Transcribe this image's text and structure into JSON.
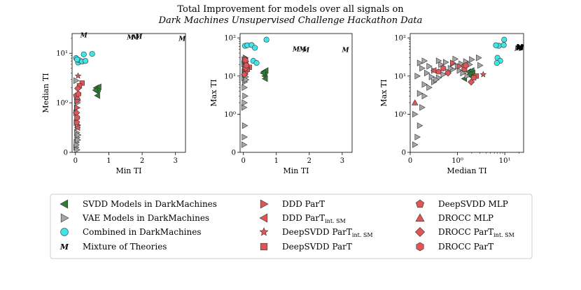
{
  "chart_data": {
    "type": "scatter",
    "title_line1": "Total Improvement for models over all signals on",
    "title_line2": "Dark Machines Unsupervised Challenge Hackathon Data",
    "panels": [
      {
        "id": "p1",
        "xlabel": "Min TI",
        "ylabel": "Median TI",
        "xscale": "linear",
        "yscale": "symlog",
        "xlim": [
          -0.1,
          3.3
        ],
        "ylim": [
          0,
          25
        ],
        "xticks": [
          {
            "v": 0,
            "label": "0"
          },
          {
            "v": 1,
            "label": "1"
          },
          {
            "v": 2,
            "label": "2"
          },
          {
            "v": 3,
            "label": "3"
          }
        ],
        "yticks": [
          {
            "v": 0,
            "label": "0"
          },
          {
            "v": 1,
            "label": "10⁰"
          },
          {
            "v": 10,
            "label": "10¹"
          }
        ],
        "series": [
          {
            "key": "svdd",
            "points": [
              [
                0.62,
                2.0
              ],
              [
                0.65,
                1.7
              ],
              [
                0.68,
                1.9
              ],
              [
                0.7,
                2.1
              ],
              [
                0.66,
                1.4
              ],
              [
                0.6,
                1.8
              ]
            ]
          },
          {
            "key": "vae",
            "points": [
              [
                0.02,
                0.1
              ],
              [
                0.03,
                0.2
              ],
              [
                0.05,
                0.3
              ],
              [
                0.04,
                0.4
              ],
              [
                0.06,
                0.5
              ],
              [
                0.03,
                0.6
              ],
              [
                0.05,
                0.7
              ],
              [
                0.02,
                0.8
              ],
              [
                0.04,
                0.9
              ],
              [
                0.06,
                1.0
              ],
              [
                0.05,
                1.2
              ],
              [
                0.03,
                0.15
              ],
              [
                0.07,
                0.25
              ],
              [
                0.08,
                0.35
              ],
              [
                0.02,
                2.8
              ],
              [
                0.05,
                0.05
              ],
              [
                0.07,
                0.55
              ],
              [
                0.04,
                1.1
              ]
            ]
          },
          {
            "key": "combined",
            "points": [
              [
                0.02,
                8.0
              ],
              [
                0.08,
                6.5
              ],
              [
                0.12,
                7.2
              ],
              [
                0.2,
                6.8
              ],
              [
                0.25,
                9.5
              ],
              [
                0.3,
                7.0
              ],
              [
                0.5,
                9.7
              ],
              [
                0.05,
                7.5
              ]
            ]
          },
          {
            "key": "ddd",
            "points": [
              [
                0.05,
                0.9
              ],
              [
                0.07,
                1.1
              ]
            ]
          },
          {
            "key": "dddint",
            "points": [
              [
                0.06,
                0.5
              ]
            ]
          },
          {
            "key": "star",
            "points": [
              [
                0.08,
                3.5
              ]
            ]
          },
          {
            "key": "square",
            "points": [
              [
                0.2,
                2.5
              ],
              [
                0.12,
                2.2
              ]
            ]
          },
          {
            "key": "pent",
            "points": [
              [
                0.02,
                1.4
              ],
              [
                0.04,
                0.6
              ]
            ]
          },
          {
            "key": "tri",
            "points": [
              [
                0.06,
                1.3
              ]
            ]
          },
          {
            "key": "diam",
            "points": [
              [
                0.07,
                1.95
              ],
              [
                0.03,
                0.8
              ]
            ]
          },
          {
            "key": "hex",
            "points": [
              [
                0.05,
                0.7
              ],
              [
                0.09,
                1.5
              ]
            ]
          },
          {
            "key": "M",
            "points": [
              [
                0.25,
                23
              ],
              [
                1.65,
                21
              ],
              [
                1.8,
                21
              ],
              [
                1.9,
                21.5
              ],
              [
                3.2,
                19.5
              ]
            ]
          }
        ]
      },
      {
        "id": "p2",
        "xlabel": "Min TI",
        "ylabel": "Max TI",
        "xscale": "linear",
        "yscale": "symlog",
        "xlim": [
          -0.1,
          3.3
        ],
        "ylim": [
          0,
          130
        ],
        "xticks": [
          {
            "v": 0,
            "label": "0"
          },
          {
            "v": 1,
            "label": "1"
          },
          {
            "v": 2,
            "label": "2"
          },
          {
            "v": 3,
            "label": "3"
          }
        ],
        "yticks": [
          {
            "v": 0,
            "label": "0"
          },
          {
            "v": 1,
            "label": "10⁰"
          },
          {
            "v": 10,
            "label": "10¹"
          },
          {
            "v": 100,
            "label": "10²"
          }
        ],
        "series": [
          {
            "key": "svdd",
            "points": [
              [
                0.62,
                13
              ],
              [
                0.65,
                10
              ],
              [
                0.68,
                14
              ],
              [
                0.6,
                12
              ],
              [
                0.66,
                8.5
              ]
            ]
          },
          {
            "key": "vae",
            "points": [
              [
                0.02,
                0.2
              ],
              [
                0.03,
                0.4
              ],
              [
                0.04,
                0.7
              ],
              [
                0.02,
                1.5
              ],
              [
                0.05,
                3
              ],
              [
                0.03,
                5
              ],
              [
                0.04,
                7
              ],
              [
                0.02,
                9
              ],
              [
                0.05,
                11
              ],
              [
                0.03,
                13
              ],
              [
                0.06,
                15
              ],
              [
                0.04,
                18
              ],
              [
                0.02,
                21
              ],
              [
                0.05,
                24
              ],
              [
                0.03,
                27
              ],
              [
                0.06,
                30
              ],
              [
                0.04,
                12
              ],
              [
                0.07,
                9.5
              ],
              [
                0.08,
                8
              ],
              [
                0.03,
                2
              ]
            ]
          },
          {
            "key": "combined",
            "points": [
              [
                0.05,
                62
              ],
              [
                0.12,
                64
              ],
              [
                0.25,
                65
              ],
              [
                0.35,
                55
              ],
              [
                0.7,
                90
              ],
              [
                0.3,
                25
              ],
              [
                0.4,
                22
              ]
            ]
          },
          {
            "key": "ddd",
            "points": [
              [
                0.06,
                22
              ],
              [
                0.08,
                18
              ]
            ]
          },
          {
            "key": "dddint",
            "points": [
              [
                0.05,
                14
              ]
            ]
          },
          {
            "key": "star",
            "points": [
              [
                0.08,
                23
              ]
            ]
          },
          {
            "key": "square",
            "points": [
              [
                0.18,
                17
              ],
              [
                0.12,
                15
              ]
            ]
          },
          {
            "key": "pent",
            "points": [
              [
                0.04,
                28
              ],
              [
                0.06,
                12
              ]
            ]
          },
          {
            "key": "tri",
            "points": [
              [
                0.05,
                20
              ]
            ]
          },
          {
            "key": "diam",
            "points": [
              [
                0.07,
                16
              ],
              [
                0.03,
                11
              ]
            ]
          },
          {
            "key": "hex",
            "points": [
              [
                0.06,
                26
              ],
              [
                0.09,
                19
              ]
            ]
          },
          {
            "key": "M",
            "points": [
              [
                1.6,
                50
              ],
              [
                1.8,
                50
              ],
              [
                1.9,
                48
              ],
              [
                3.1,
                48
              ]
            ]
          }
        ]
      },
      {
        "id": "p3",
        "xlabel": "Median TI",
        "ylabel": "Max TI",
        "xscale": "symlog",
        "yscale": "symlog",
        "xlim": [
          0,
          25
        ],
        "ylim": [
          0,
          130
        ],
        "xticks": [
          {
            "v": 0,
            "label": "0"
          },
          {
            "v": 1,
            "label": "10⁰"
          },
          {
            "v": 10,
            "label": "10¹"
          }
        ],
        "yticks": [
          {
            "v": 0,
            "label": "0"
          },
          {
            "v": 1,
            "label": "10⁰"
          },
          {
            "v": 10,
            "label": "10¹"
          },
          {
            "v": 100,
            "label": "10²"
          }
        ],
        "series": [
          {
            "key": "svdd",
            "points": [
              [
                1.7,
                13
              ],
              [
                1.9,
                10
              ],
              [
                2.0,
                14
              ],
              [
                2.1,
                12
              ],
              [
                1.4,
                8.5
              ],
              [
                1.8,
                11
              ]
            ]
          },
          {
            "key": "vae",
            "points": [
              [
                0.1,
                0.2
              ],
              [
                0.15,
                0.4
              ],
              [
                0.2,
                0.7
              ],
              [
                0.25,
                1.5
              ],
              [
                0.3,
                3
              ],
              [
                0.4,
                5
              ],
              [
                0.5,
                7
              ],
              [
                0.6,
                9
              ],
              [
                0.7,
                11
              ],
              [
                0.8,
                13
              ],
              [
                0.9,
                15
              ],
              [
                1.0,
                18
              ],
              [
                1.2,
                21
              ],
              [
                1.5,
                24
              ],
              [
                2.0,
                27
              ],
              [
                2.8,
                30
              ],
              [
                0.35,
                12
              ],
              [
                0.45,
                9.5
              ],
              [
                0.55,
                8
              ],
              [
                0.2,
                22
              ],
              [
                0.3,
                25
              ],
              [
                0.65,
                20
              ],
              [
                0.85,
                16
              ],
              [
                1.1,
                14
              ],
              [
                1.3,
                12
              ],
              [
                1.6,
                10
              ],
              [
                2.2,
                9
              ],
              [
                0.4,
                18
              ],
              [
                0.75,
                23
              ],
              [
                0.95,
                28
              ],
              [
                3.0,
                19
              ],
              [
                0.25,
                16
              ],
              [
                0.5,
                14
              ],
              [
                1.4,
                17
              ],
              [
                0.6,
                25
              ],
              [
                0.9,
                21
              ],
              [
                1.8,
                20
              ],
              [
                0.15,
                10
              ],
              [
                0.3,
                6
              ],
              [
                0.2,
                3.5
              ],
              [
                0.1,
                1.0
              ]
            ]
          },
          {
            "key": "combined",
            "points": [
              [
                7.5,
                62
              ],
              [
                6.5,
                64
              ],
              [
                9.5,
                65
              ],
              [
                7.0,
                30
              ],
              [
                9.7,
                90
              ],
              [
                8.0,
                25
              ],
              [
                6.8,
                22
              ]
            ]
          },
          {
            "key": "ddd",
            "points": [
              [
                0.9,
                22
              ],
              [
                1.1,
                18
              ]
            ]
          },
          {
            "key": "dddint",
            "points": [
              [
                0.5,
                14
              ]
            ]
          },
          {
            "key": "star",
            "points": [
              [
                3.5,
                11
              ]
            ]
          },
          {
            "key": "square",
            "points": [
              [
                2.5,
                10
              ],
              [
                2.2,
                9
              ]
            ]
          },
          {
            "key": "pent",
            "points": [
              [
                1.4,
                15
              ],
              [
                0.6,
                13
              ]
            ]
          },
          {
            "key": "tri",
            "points": [
              [
                0.1,
                2.0
              ]
            ]
          },
          {
            "key": "diam",
            "points": [
              [
                1.95,
                7
              ],
              [
                0.8,
                12
              ]
            ]
          },
          {
            "key": "hex",
            "points": [
              [
                0.7,
                16
              ],
              [
                1.5,
                19
              ]
            ]
          },
          {
            "key": "M",
            "points": [
              [
                19,
                52
              ],
              [
                20,
                55
              ],
              [
                21,
                54
              ],
              [
                20.5,
                58
              ],
              [
                21.5,
                56
              ]
            ]
          }
        ]
      }
    ],
    "legend": [
      {
        "key": "svdd",
        "label": "SVDD Models in DarkMachines"
      },
      {
        "key": "vae",
        "label": "VAE Models in DarkMachines"
      },
      {
        "key": "combined",
        "label": "Combined in DarkMachines"
      },
      {
        "key": "M",
        "label": "Mixture of Theories"
      },
      {
        "key": "ddd",
        "label": "DDD ParT"
      },
      {
        "key": "dddint",
        "label": "DDD ParT",
        "sub": "int. SM"
      },
      {
        "key": "star",
        "label": "DeepSVDD ParT",
        "sub": "int. SM"
      },
      {
        "key": "square",
        "label": "DeepSVDD ParT"
      },
      {
        "key": "pent",
        "label": "DeepSVDD MLP"
      },
      {
        "key": "tri",
        "label": "DROCC MLP"
      },
      {
        "key": "diam",
        "label": "DROCC ParT",
        "sub": "int. SM"
      },
      {
        "key": "hex",
        "label": "DROCC ParT"
      }
    ],
    "legend_placement": "bottom",
    "colors": {
      "svdd": "#2e7d32",
      "vae": "#a6a6a6",
      "combined": "#40e6e6",
      "red": "#e05555",
      "M": "#000000"
    }
  }
}
